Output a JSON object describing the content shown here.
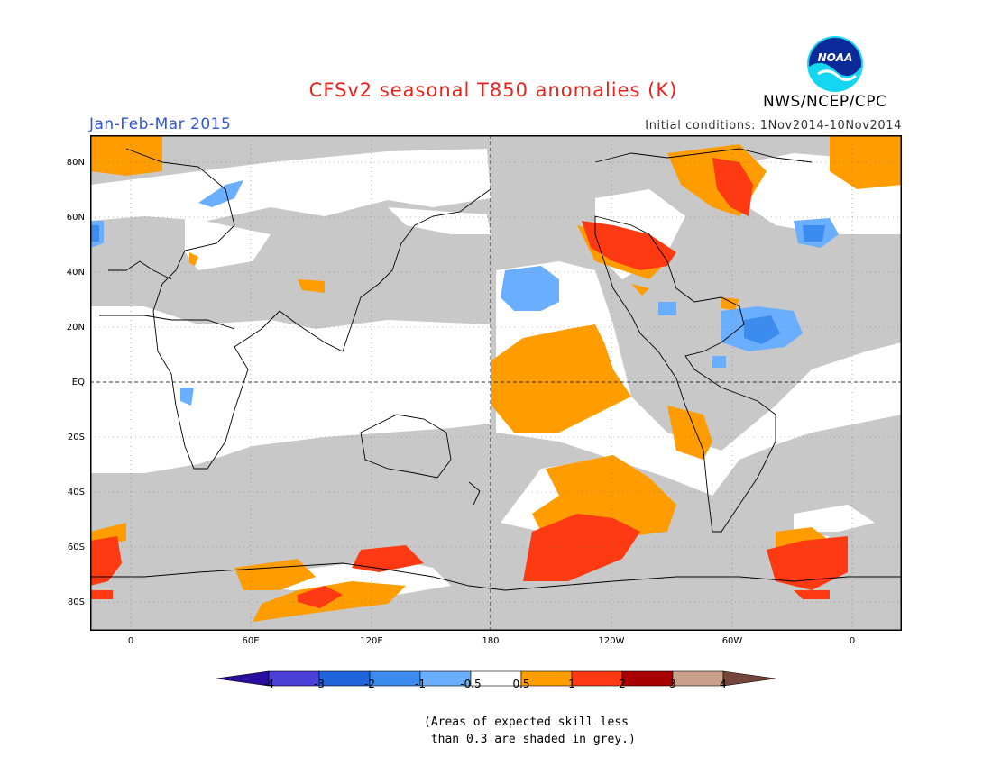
{
  "header": {
    "title": "CFSv2 seasonal T850 anomalies (K)",
    "period": "Jan-Feb-Mar 2015",
    "initial_conditions": "Initial conditions: 1Nov2014-10Nov2014",
    "agency": "NWS/NCEP/CPC",
    "logo_text": "NOAA"
  },
  "map": {
    "lat_labels": [
      "80N",
      "60N",
      "40N",
      "20N",
      "EQ",
      "20S",
      "40S",
      "60S",
      "80S"
    ],
    "lon_labels": [
      "0",
      "60E",
      "120E",
      "180",
      "120W",
      "60W",
      "0"
    ],
    "colors": {
      "skill_grey": "#c8c8c8",
      "neutral": "#ffffff",
      "cat_0_5_1": "#ff9d00",
      "cat_1_2": "#ff3a12",
      "cat_2_3": "#a80000",
      "cat_neg_0_5_neg_1": "#6aaeff",
      "cat_neg_1_neg_2": "#3c8cf0",
      "coast": "#000000"
    }
  },
  "colorbar": {
    "labels": [
      "-4",
      "-3",
      "-2",
      "-1",
      "-0.5",
      "0.5",
      "1",
      "2",
      "3",
      "4"
    ],
    "colors": [
      "#2a0e9e",
      "#4a3fd6",
      "#1f64db",
      "#3c8cf0",
      "#6aaeff",
      "#ffffff",
      "#ff9d00",
      "#ff3a12",
      "#a80000",
      "#c9a08c",
      "#75463b"
    ]
  },
  "note": {
    "line1": "(Areas of expected skill less",
    "line2": " than 0.3 are shaded in grey.)"
  }
}
